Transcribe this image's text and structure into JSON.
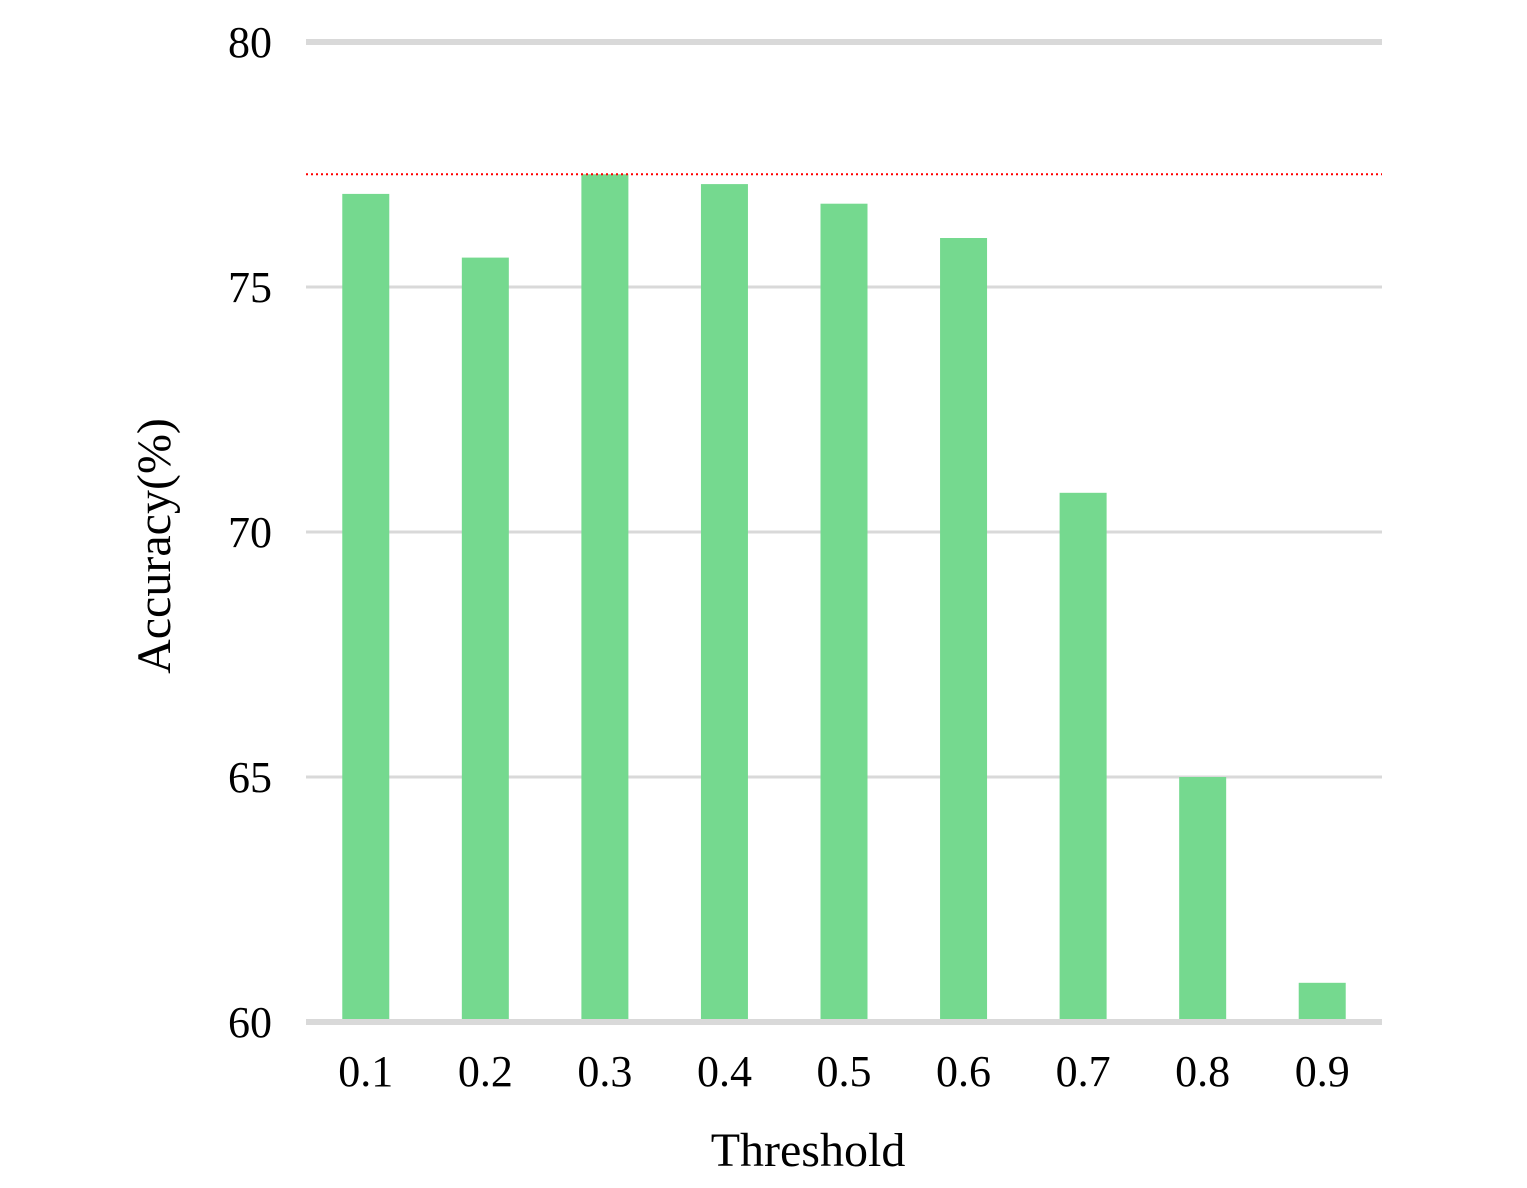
{
  "chart_data": {
    "type": "bar",
    "title": "",
    "xlabel": "Threshold",
    "ylabel": "Accuracy(%)",
    "categories": [
      "0.1",
      "0.2",
      "0.3",
      "0.4",
      "0.5",
      "0.6",
      "0.7",
      "0.8",
      "0.9"
    ],
    "values": [
      76.9,
      75.6,
      77.3,
      77.1,
      76.7,
      76.0,
      70.8,
      65.0,
      60.8
    ],
    "ylim": [
      60,
      80
    ],
    "yticks": [
      "60",
      "65",
      "70",
      "75",
      "80"
    ],
    "grid": true,
    "legend": "none",
    "reference_line": {
      "value": 77.3,
      "style": "dotted"
    },
    "colors": {
      "bar": "#75d98f",
      "grid": "#d9d9d9",
      "reference_line": "#ff0000"
    }
  }
}
